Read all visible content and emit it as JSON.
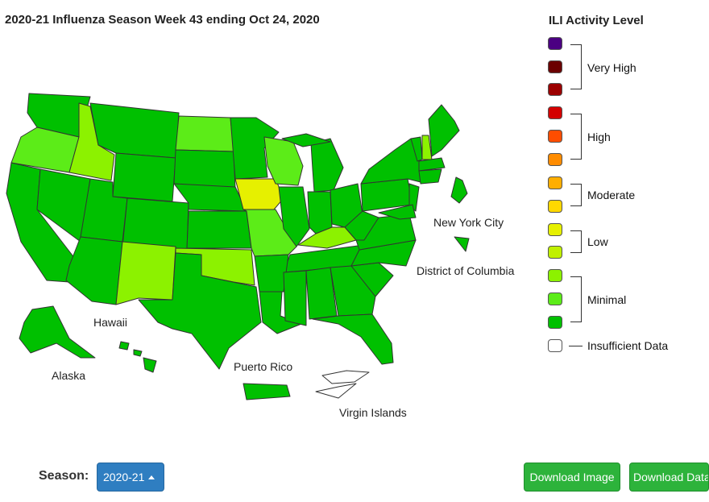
{
  "title": "2020-21 Influenza Season Week 43 ending Oct 24, 2020",
  "map_labels": {
    "hawaii": "Hawaii",
    "alaska": "Alaska",
    "puerto_rico": "Puerto Rico",
    "virgin_islands": "Virgin Islands",
    "new_york_city": "New York City",
    "district_of_columbia": "District of Columbia"
  },
  "legend": {
    "title": "ILI Activity Level",
    "levels": [
      {
        "label": "Very High",
        "colors": [
          "#4b0082",
          "#6b0000",
          "#9c0000"
        ]
      },
      {
        "label": "High",
        "colors": [
          "#d40000",
          "#ff4d00",
          "#ff8c00"
        ]
      },
      {
        "label": "Moderate",
        "colors": [
          "#ffae00",
          "#ffd800"
        ]
      },
      {
        "label": "Low",
        "colors": [
          "#e6f000",
          "#c0f000"
        ]
      },
      {
        "label": "Minimal",
        "colors": [
          "#8cf200",
          "#5cec18",
          "#00c000"
        ]
      },
      {
        "label": "Insufficient Data",
        "colors": [
          "#ffffff"
        ]
      }
    ]
  },
  "colors": {
    "minimal_dark": "#00c000",
    "minimal_mid": "#5cec18",
    "minimal_light": "#8cf200",
    "low": "#e6f000",
    "insufficient": "#ffffff"
  },
  "controls": {
    "season_label": "Season:",
    "season_value": "2020-21",
    "download_image": "Download Image",
    "download_data": "Download Data"
  }
}
